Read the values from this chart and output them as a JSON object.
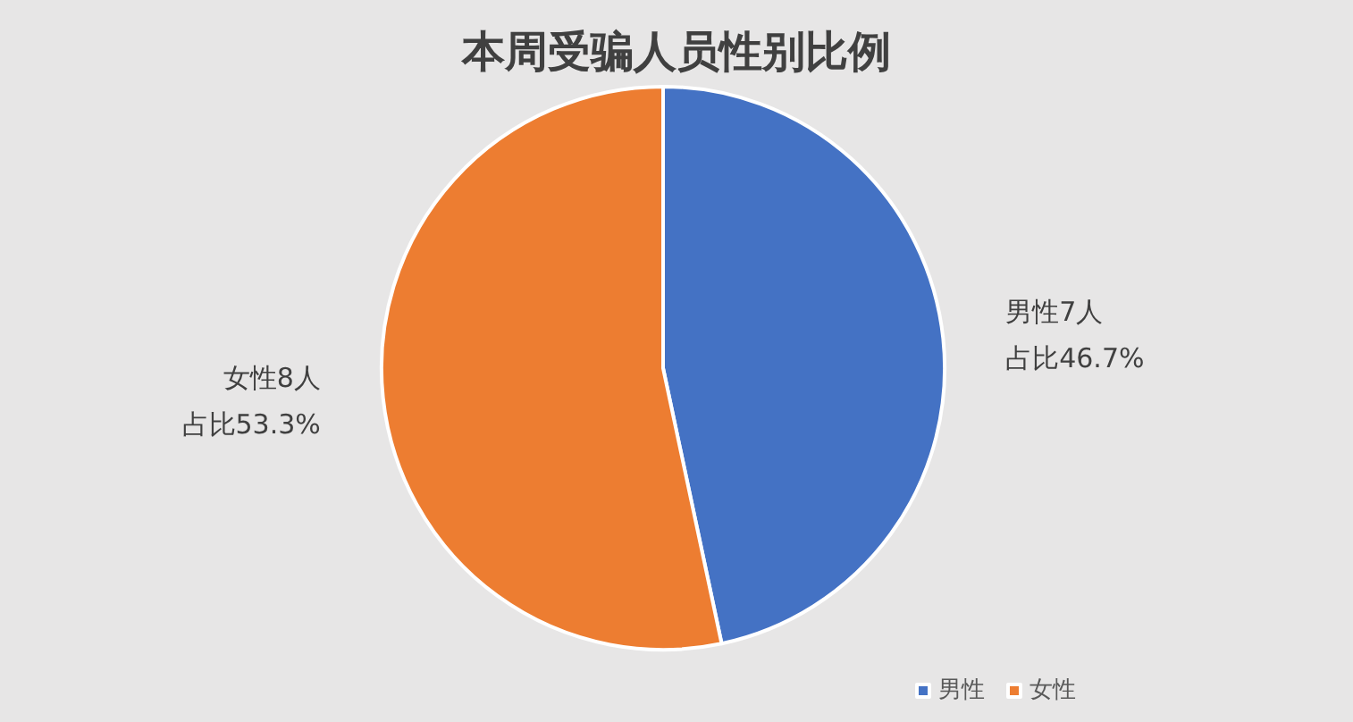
{
  "chart_data": {
    "type": "pie",
    "title": "本周受骗人员性别比例",
    "categories": [
      "男性",
      "女性"
    ],
    "values": [
      7,
      8
    ],
    "colors": [
      "#4472c4",
      "#ed7d31"
    ],
    "value_labels": [
      "男性7人占比46.7%",
      "女性8人占比53.3%"
    ],
    "legend": "bottom right"
  }
}
